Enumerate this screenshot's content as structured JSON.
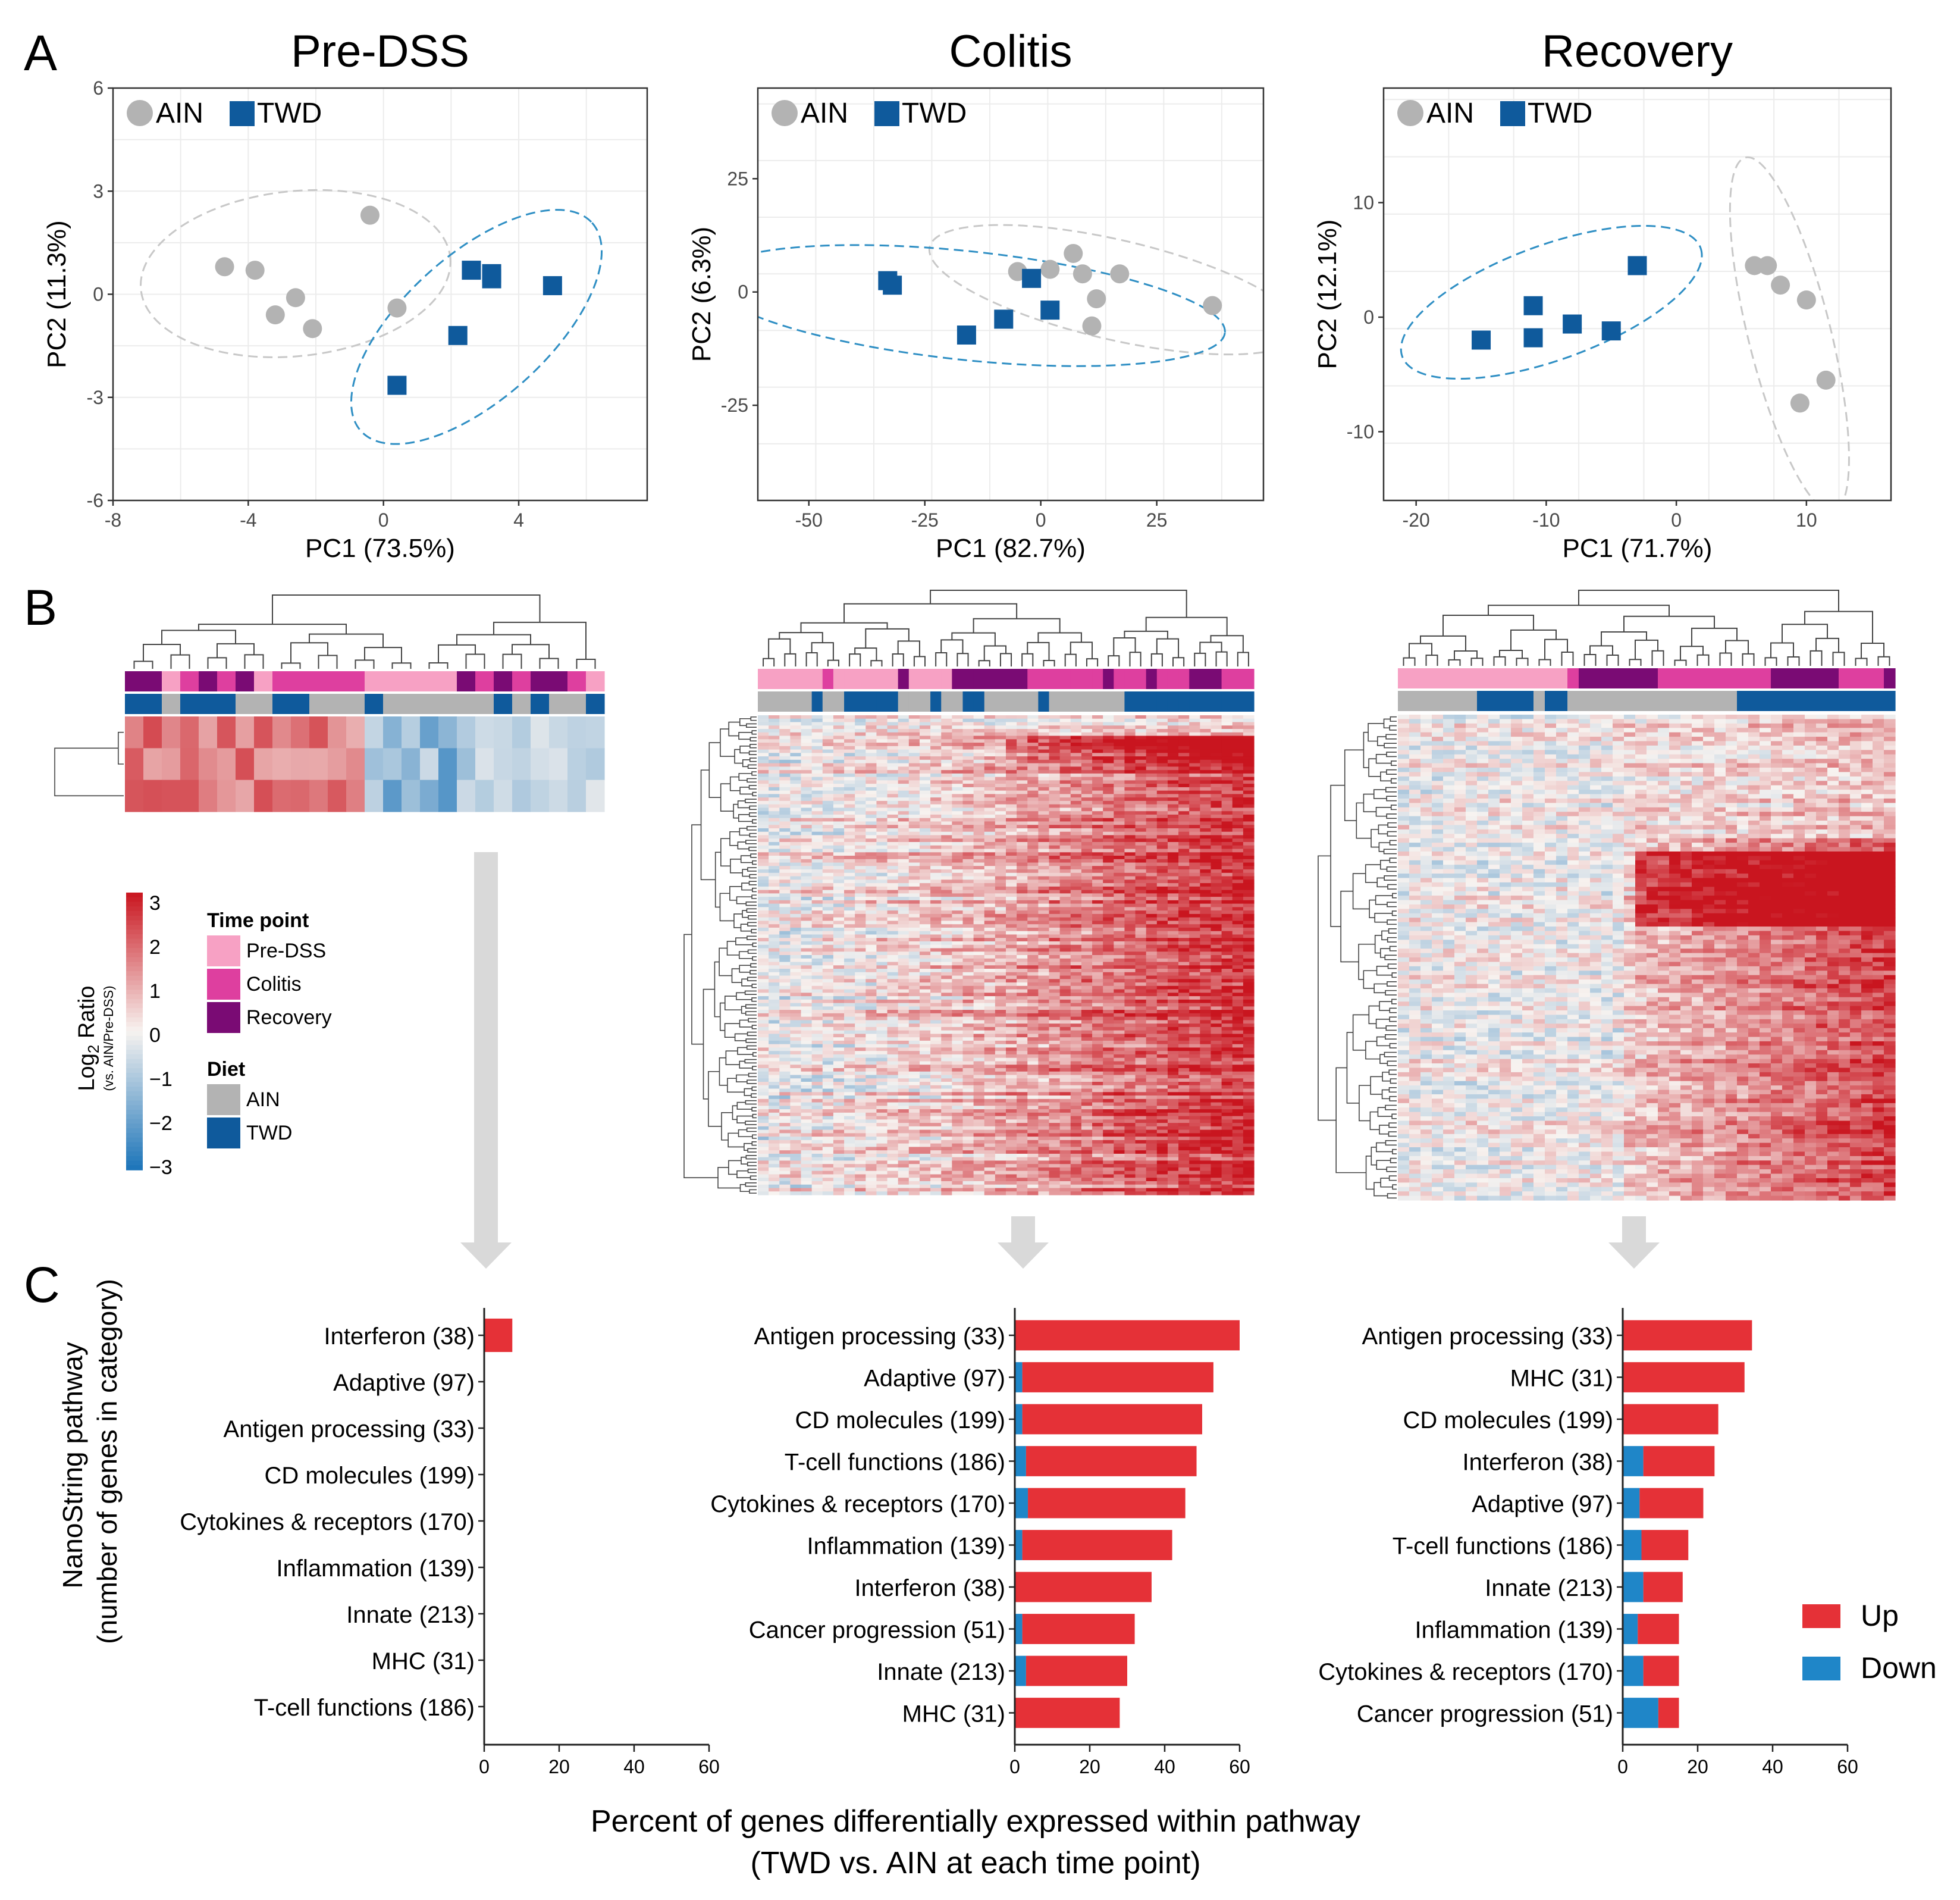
{
  "panels": {
    "a": "A",
    "b": "B",
    "c": "C"
  },
  "colors": {
    "ain": "#b3b3b3",
    "twd": "#0f5a9c",
    "ellipse_ain": "#c8c8c8",
    "ellipse_twd": "#2f8fc4",
    "pre_dss": "#f7a1c4",
    "colitis": "#de3f9f",
    "recovery": "#7a0b74",
    "up": "#e53137",
    "down": "#1f86c8",
    "heat_high": "#c9151f",
    "heat_mid": "#f7f3f0",
    "heat_low": "#1b74b9",
    "arrow": "#d9d9d9",
    "grid": "#ececec"
  },
  "pca": [
    {
      "title": "Pre-DSS",
      "xlabel": "PC1 (73.5%)",
      "ylabel": "PC2 (11.3%)",
      "legend": {
        "ain": "AIN",
        "twd": "TWD"
      },
      "xlim": [
        -8,
        7.8
      ],
      "ylim": [
        -6,
        6
      ],
      "xticks": [
        -8,
        -4,
        0,
        4
      ],
      "yticks": [
        -6,
        -3,
        0,
        3,
        6
      ],
      "xtick_labels": [
        "-8",
        "-4",
        "0",
        "4"
      ],
      "ytick_labels": [
        "-6",
        "-3",
        "0",
        "3",
        "6"
      ],
      "ain_points": [
        [
          -0.4,
          2.3
        ],
        [
          -4.7,
          0.8
        ],
        [
          -3.8,
          0.7
        ],
        [
          -2.6,
          -0.1
        ],
        [
          -3.2,
          -0.6
        ],
        [
          -2.1,
          -1.0
        ],
        [
          0.4,
          -0.4
        ]
      ],
      "twd_points": [
        [
          2.6,
          0.7
        ],
        [
          3.2,
          0.6
        ],
        [
          3.2,
          0.45
        ],
        [
          5.0,
          0.25
        ],
        [
          2.2,
          -1.2
        ],
        [
          0.4,
          -2.65
        ]
      ],
      "ain_ellipse": {
        "cx": -2.6,
        "cy": 0.6,
        "rx": 4.6,
        "ry": 2.4,
        "angle": 6
      },
      "twd_ellipse": {
        "cx": 2.75,
        "cy": -0.95,
        "rx": 4.6,
        "ry": 2.1,
        "angle": 42
      }
    },
    {
      "title": "Colitis",
      "xlabel": "PC1 (82.7%)",
      "ylabel": "PC2 (6.3%)",
      "legend": {
        "ain": "AIN",
        "twd": "TWD"
      },
      "xlim": [
        -61,
        48
      ],
      "ylim": [
        -46,
        45
      ],
      "xticks": [
        -50,
        -25,
        0,
        25
      ],
      "yticks": [
        -25,
        0,
        25
      ],
      "xtick_labels": [
        "-50",
        "-25",
        "0",
        "25"
      ],
      "ytick_labels": [
        "-25",
        "0",
        "25"
      ],
      "ain_points": [
        [
          -5,
          4.5
        ],
        [
          2,
          5
        ],
        [
          7,
          8.5
        ],
        [
          9,
          4
        ],
        [
          17,
          4
        ],
        [
          12,
          -1.5
        ],
        [
          11,
          -7.5
        ],
        [
          37,
          -3
        ]
      ],
      "twd_points": [
        [
          -33,
          2.5
        ],
        [
          -32,
          1.5
        ],
        [
          -2,
          3
        ],
        [
          -8,
          -6
        ],
        [
          -16,
          -9.5
        ],
        [
          2,
          -4
        ]
      ],
      "ain_ellipse": {
        "cx": 16,
        "cy": 0.5,
        "rx": 41,
        "ry": 11,
        "angle": -13
      },
      "twd_ellipse": {
        "cx": -16,
        "cy": -3,
        "rx": 56,
        "ry": 12,
        "angle": -6
      }
    },
    {
      "title": "Recovery",
      "xlabel": "PC1 (71.7%)",
      "ylabel": "PC2 (12.1%)",
      "legend": {
        "ain": "AIN",
        "twd": "TWD"
      },
      "xlim": [
        -22.5,
        16.5
      ],
      "ylim": [
        -16,
        20
      ],
      "xticks": [
        -20,
        -10,
        0,
        10
      ],
      "yticks": [
        -10,
        0,
        10
      ],
      "xtick_labels": [
        "-20",
        "-10",
        "0",
        "10"
      ],
      "ytick_labels": [
        "-10",
        "0",
        "10"
      ],
      "ain_points": [
        [
          6,
          4.5
        ],
        [
          7,
          4.5
        ],
        [
          8,
          2.8
        ],
        [
          10,
          1.5
        ],
        [
          11.5,
          -5.5
        ],
        [
          9.5,
          -7.5
        ]
      ],
      "twd_points": [
        [
          -3,
          4.5
        ],
        [
          -11,
          1
        ],
        [
          -15,
          -2
        ],
        [
          -11,
          -1.8
        ],
        [
          -8,
          -0.6
        ],
        [
          -5,
          -1.2
        ]
      ],
      "ain_ellipse": {
        "cx": 8.7,
        "cy": -1.5,
        "rx": 14,
        "ry": 3.6,
        "angle": -76
      },
      "twd_ellipse": {
        "cx": -9.6,
        "cy": 1.3,
        "rx": 12.2,
        "ry": 5,
        "angle": 20
      }
    }
  ],
  "heatmaps": [
    {
      "name": "Pre-DSS",
      "rows": 3,
      "cols": 26,
      "timepoint_bar": [
        "recovery",
        "recovery",
        "pre_dss",
        "colitis",
        "recovery",
        "colitis",
        "recovery",
        "pre_dss",
        "colitis",
        "colitis",
        "colitis",
        "colitis",
        "colitis",
        "pre_dss",
        "pre_dss",
        "pre_dss",
        "pre_dss",
        "pre_dss",
        "recovery",
        "colitis",
        "recovery",
        "colitis",
        "recovery",
        "recovery",
        "colitis",
        "pre_dss"
      ],
      "diet_bar": [
        "twd",
        "twd",
        "ain",
        "twd",
        "twd",
        "twd",
        "ain",
        "ain",
        "twd",
        "twd",
        "ain",
        "ain",
        "ain",
        "twd",
        "ain",
        "ain",
        "ain",
        "ain",
        "ain",
        "ain",
        "twd",
        "ain",
        "twd",
        "ain",
        "ain",
        "twd"
      ]
    },
    {
      "name": "Colitis",
      "rows": 140,
      "cols": 46,
      "timepoint_bar": [
        "pre_dss",
        "pre_dss",
        "pre_dss",
        "pre_dss",
        "pre_dss",
        "pre_dss",
        "colitis",
        "pre_dss",
        "pre_dss",
        "pre_dss",
        "pre_dss",
        "pre_dss",
        "pre_dss",
        "recovery",
        "pre_dss",
        "pre_dss",
        "pre_dss",
        "pre_dss",
        "recovery",
        "recovery",
        "recovery",
        "recovery",
        "recovery",
        "recovery",
        "recovery",
        "colitis",
        "colitis",
        "colitis",
        "colitis",
        "colitis",
        "colitis",
        "colitis",
        "recovery",
        "colitis",
        "colitis",
        "colitis",
        "recovery",
        "colitis",
        "colitis",
        "colitis",
        "recovery",
        "recovery",
        "recovery",
        "colitis",
        "colitis",
        "colitis"
      ],
      "diet_bar": [
        "ain",
        "ain",
        "ain",
        "ain",
        "ain",
        "twd",
        "ain",
        "ain",
        "twd",
        "twd",
        "twd",
        "twd",
        "twd",
        "ain",
        "ain",
        "ain",
        "twd",
        "ain",
        "ain",
        "twd",
        "twd",
        "ain",
        "ain",
        "ain",
        "ain",
        "ain",
        "twd",
        "ain",
        "ain",
        "ain",
        "ain",
        "ain",
        "ain",
        "ain",
        "twd",
        "twd",
        "twd",
        "twd",
        "twd",
        "twd",
        "twd",
        "twd",
        "twd",
        "twd",
        "twd",
        "twd"
      ]
    },
    {
      "name": "Recovery",
      "rows": 110,
      "cols": 44,
      "timepoint_bar": [
        "pre_dss",
        "pre_dss",
        "pre_dss",
        "pre_dss",
        "pre_dss",
        "pre_dss",
        "pre_dss",
        "pre_dss",
        "pre_dss",
        "pre_dss",
        "pre_dss",
        "pre_dss",
        "pre_dss",
        "pre_dss",
        "pre_dss",
        "colitis",
        "recovery",
        "recovery",
        "recovery",
        "recovery",
        "recovery",
        "recovery",
        "recovery",
        "colitis",
        "colitis",
        "colitis",
        "colitis",
        "colitis",
        "colitis",
        "colitis",
        "colitis",
        "colitis",
        "colitis",
        "recovery",
        "recovery",
        "recovery",
        "recovery",
        "recovery",
        "recovery",
        "colitis",
        "colitis",
        "colitis",
        "colitis",
        "recovery"
      ],
      "diet_bar": [
        "ain",
        "ain",
        "ain",
        "ain",
        "ain",
        "ain",
        "ain",
        "twd",
        "twd",
        "twd",
        "twd",
        "twd",
        "ain",
        "twd",
        "twd",
        "ain",
        "ain",
        "ain",
        "ain",
        "ain",
        "ain",
        "ain",
        "ain",
        "ain",
        "ain",
        "ain",
        "ain",
        "ain",
        "ain",
        "ain",
        "twd",
        "twd",
        "twd",
        "twd",
        "twd",
        "twd",
        "twd",
        "twd",
        "twd",
        "twd",
        "twd",
        "twd",
        "twd",
        "twd"
      ]
    }
  ],
  "heatmap_legend": {
    "scale_title": "Log",
    "scale_subscript": "2",
    "scale_title_rest": " Ratio",
    "scale_subtitle": "(vs. AIN/Pre-DSS)",
    "ticks": [
      "3",
      "2",
      "1",
      "0",
      "−1",
      "−2",
      "−3"
    ],
    "time_point_title": "Time point",
    "time_point_items": [
      "Pre-DSS",
      "Colitis",
      "Recovery"
    ],
    "diet_title": "Diet",
    "diet_items": [
      "AIN",
      "TWD"
    ]
  },
  "chart_data": [
    {
      "type": "bar",
      "orientation": "horizontal",
      "stacked": true,
      "categories": [
        "Interferon (38)",
        "Adaptive (97)",
        "Antigen processing (33)",
        "CD molecules (199)",
        "Cytokines & receptors (170)",
        "Inflammation (139)",
        "Innate (213)",
        "MHC (31)",
        "T-cell functions (186)"
      ],
      "series": [
        {
          "name": "Down",
          "values": [
            0,
            0,
            0,
            0,
            0,
            0,
            0,
            0,
            0
          ]
        },
        {
          "name": "Up",
          "values": [
            7.5,
            0,
            0,
            0,
            0,
            0,
            0,
            0,
            0
          ]
        }
      ],
      "xlim": [
        0,
        60
      ],
      "xticks": [
        "0",
        "20",
        "40",
        "60"
      ]
    },
    {
      "type": "bar",
      "orientation": "horizontal",
      "stacked": true,
      "categories": [
        "Antigen processing (33)",
        "Adaptive (97)",
        "CD molecules (199)",
        "T-cell functions (186)",
        "Cytokines & receptors (170)",
        "Inflammation (139)",
        "Interferon (38)",
        "Cancer progression (51)",
        "Innate (213)",
        "MHC (31)"
      ],
      "series": [
        {
          "name": "Down",
          "values": [
            0,
            2,
            2,
            3,
            3.5,
            2,
            0,
            2,
            3,
            0
          ]
        },
        {
          "name": "Up",
          "values": [
            60,
            51,
            48,
            45.5,
            42,
            40,
            36.5,
            30,
            27,
            28
          ]
        }
      ],
      "xlim": [
        0,
        60
      ],
      "xticks": [
        "0",
        "20",
        "40",
        "60"
      ]
    },
    {
      "type": "bar",
      "orientation": "horizontal",
      "stacked": true,
      "categories": [
        "Antigen processing (33)",
        "MHC (31)",
        "CD molecules (199)",
        "Interferon (38)",
        "Adaptive (97)",
        "T-cell functions (186)",
        "Innate (213)",
        "Inflammation (139)",
        "Cytokines & receptors (170)",
        "Cancer progression (51)"
      ],
      "series": [
        {
          "name": "Down",
          "values": [
            0,
            0,
            0,
            5.5,
            4.5,
            5,
            5.5,
            4,
            5.5,
            9.5
          ]
        },
        {
          "name": "Up",
          "values": [
            34.5,
            32.5,
            25.5,
            19,
            17,
            12.5,
            10.5,
            11,
            9.5,
            5.5
          ]
        }
      ],
      "xlim": [
        0,
        60
      ],
      "xticks": [
        "0",
        "20",
        "40",
        "60"
      ]
    }
  ],
  "bars_common": {
    "ylabel_line1": "NanoString pathway",
    "ylabel_line2": "(number of genes in category)",
    "xlabel_line1": "Percent of genes differentially expressed within pathway",
    "xlabel_line2": "(TWD vs. AIN at each time point)",
    "legend_up": "Up",
    "legend_down": "Down"
  }
}
